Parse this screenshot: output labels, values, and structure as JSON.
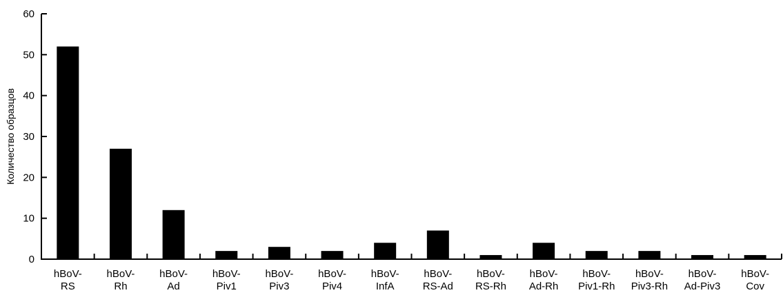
{
  "chart_data": {
    "type": "bar",
    "title": "",
    "xlabel": "",
    "ylabel": "Количество образцов",
    "ylim": [
      0,
      60
    ],
    "yticks": [
      0,
      10,
      20,
      30,
      40,
      50,
      60
    ],
    "grid": false,
    "bar_color": "#000000",
    "categories": [
      [
        "hBoV-",
        "RS"
      ],
      [
        "hBoV-",
        "Rh"
      ],
      [
        "hBoV-",
        "Ad"
      ],
      [
        "hBoV-",
        "Piv1"
      ],
      [
        "hBoV-",
        "Piv3"
      ],
      [
        "hBoV-",
        "Piv4"
      ],
      [
        "hBoV-",
        "InfA"
      ],
      [
        "hBoV-",
        "RS-Ad"
      ],
      [
        "hBoV-",
        "RS-Rh"
      ],
      [
        "hBoV-",
        "Ad-Rh"
      ],
      [
        "hBoV-",
        "Piv1-Rh"
      ],
      [
        "hBoV-",
        "Piv3-Rh"
      ],
      [
        "hBoV-",
        "Ad-Piv3"
      ],
      [
        "hBoV-",
        "Cov"
      ]
    ],
    "values": [
      52,
      27,
      12,
      2,
      3,
      2,
      4,
      7,
      1,
      4,
      2,
      2,
      1,
      1
    ]
  }
}
